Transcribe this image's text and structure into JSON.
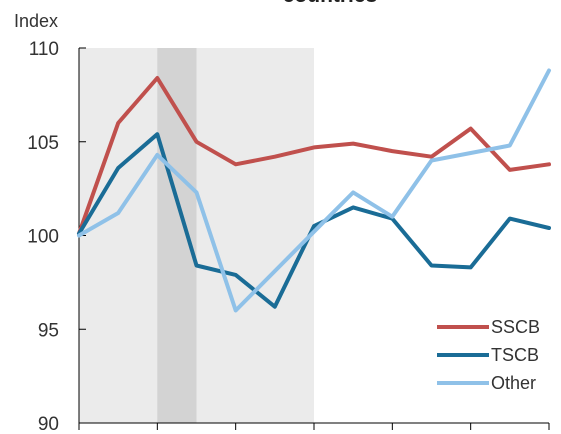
{
  "chart_data": {
    "type": "line",
    "title": "countries",
    "ylabel": "Index",
    "xlabel": "",
    "ylim": [
      90,
      110
    ],
    "yticks": [
      90,
      95,
      100,
      105,
      110
    ],
    "x_count": 13,
    "grid": false,
    "legend_position": "bottom-right",
    "shaded_regions": [
      {
        "from": 0,
        "to": 6,
        "color": "#ebebeb"
      },
      {
        "from": 2,
        "to": 3,
        "color": "#d3d3d3"
      }
    ],
    "series": [
      {
        "name": "SSCB",
        "color": "#c0504d",
        "values": [
          100.1,
          106.0,
          108.4,
          105.0,
          103.8,
          104.2,
          104.7,
          104.9,
          104.5,
          104.2,
          105.7,
          103.5,
          103.8
        ]
      },
      {
        "name": "TSCB",
        "color": "#1a6c96",
        "values": [
          100.1,
          103.6,
          105.4,
          98.4,
          97.9,
          96.2,
          100.5,
          101.5,
          100.9,
          98.4,
          98.3,
          100.9,
          100.4
        ]
      },
      {
        "name": "Other",
        "color": "#8fc1e8",
        "values": [
          100.0,
          101.2,
          104.3,
          102.3,
          96.0,
          98.1,
          100.2,
          102.3,
          101.0,
          104.0,
          104.4,
          104.8,
          108.8
        ]
      }
    ]
  }
}
